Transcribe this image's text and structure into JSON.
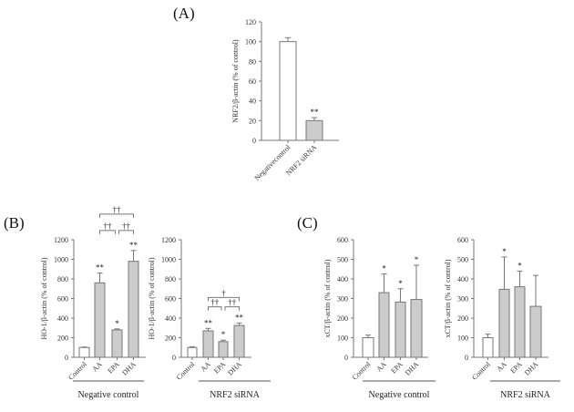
{
  "chart_data": [
    {
      "type": "bar",
      "panel": "(A)",
      "ylabel": "NRF2/β-actin (% of control)",
      "categories": [
        "Negativecontrol",
        "NRF2 siRNA"
      ],
      "values": [
        100,
        20
      ],
      "errors": [
        4,
        3
      ],
      "significance": [
        "",
        "**"
      ],
      "colors": [
        "#ffffff",
        "#cccccc"
      ],
      "ylim": [
        0,
        120
      ],
      "ystep": 20,
      "group_label": "",
      "brackets": []
    },
    {
      "type": "bar",
      "panel": "(B)",
      "ylabel": "HO-1/β-actin (% of control)",
      "categories": [
        "Control",
        "AA",
        "EPA",
        "DHA"
      ],
      "values": [
        100,
        760,
        280,
        980
      ],
      "errors": [
        5,
        100,
        10,
        110
      ],
      "significance": [
        "",
        "**",
        "*",
        "**"
      ],
      "colors": [
        "#ffffff",
        "#cccccc",
        "#cccccc",
        "#cccccc"
      ],
      "ylim": [
        0,
        1200
      ],
      "ystep": 200,
      "group_label": "Negative control",
      "brackets": [
        {
          "from": 1,
          "to": 2,
          "label": "††"
        },
        {
          "from": 2,
          "to": 3,
          "label": "††"
        },
        {
          "from": 1,
          "to": 3,
          "label": "††"
        }
      ]
    },
    {
      "type": "bar",
      "panel": "",
      "ylabel": "HO-1/β-actin (% of control)",
      "categories": [
        "Control",
        "AA",
        "EPA",
        "DHA"
      ],
      "values": [
        100,
        270,
        160,
        325
      ],
      "errors": [
        8,
        25,
        15,
        25
      ],
      "significance": [
        "",
        "**",
        "*",
        "**"
      ],
      "colors": [
        "#ffffff",
        "#cccccc",
        "#cccccc",
        "#cccccc"
      ],
      "ylim": [
        0,
        1200
      ],
      "ystep": 200,
      "group_label": "NRF2 siRNA",
      "brackets": [
        {
          "from": 1,
          "to": 2,
          "label": "††"
        },
        {
          "from": 2,
          "to": 3,
          "label": "††"
        },
        {
          "from": 1,
          "to": 3,
          "label": "†"
        }
      ]
    },
    {
      "type": "bar",
      "panel": "(C)",
      "ylabel": "xCT/β-actin (% of control)",
      "categories": [
        "Control",
        "AA",
        "EPA",
        "DHA"
      ],
      "values": [
        100,
        330,
        282,
        295
      ],
      "errors": [
        13,
        95,
        68,
        175
      ],
      "significance": [
        "",
        "*",
        "*",
        "*"
      ],
      "colors": [
        "#ffffff",
        "#cccccc",
        "#cccccc",
        "#cccccc"
      ],
      "ylim": [
        0,
        600
      ],
      "ystep": 100,
      "group_label": "Negative control",
      "brackets": []
    },
    {
      "type": "bar",
      "panel": "",
      "ylabel": "xCT/β-actin (% of control)",
      "categories": [
        "Control",
        "AA",
        "EPA",
        "DHA"
      ],
      "values": [
        100,
        347,
        360,
        260
      ],
      "errors": [
        18,
        165,
        80,
        158
      ],
      "significance": [
        "",
        "*",
        "*",
        ""
      ],
      "colors": [
        "#ffffff",
        "#cccccc",
        "#cccccc",
        "#cccccc"
      ],
      "ylim": [
        0,
        600
      ],
      "ystep": 100,
      "group_label": "NRF2 siRNA",
      "brackets": []
    }
  ]
}
